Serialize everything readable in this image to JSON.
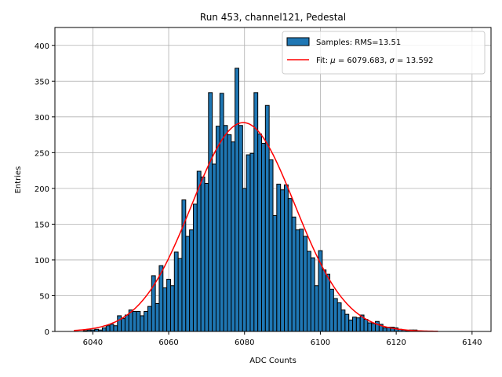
{
  "chart_data": {
    "type": "bar",
    "title": "Run 453, channel121, Pedestal",
    "xlabel": "ADC Counts",
    "ylabel": "Entries",
    "xlim": [
      6030,
      6145
    ],
    "ylim": [
      0,
      425
    ],
    "xticks": [
      6040,
      6060,
      6080,
      6100,
      6120,
      6140
    ],
    "yticks": [
      0,
      50,
      100,
      150,
      200,
      250,
      300,
      350,
      400
    ],
    "grid": true,
    "legend_position": "top-right",
    "bin_width": 1,
    "series": [
      {
        "name": "Samples: RMS=13.51",
        "kind": "histogram",
        "color": "#1f77b4",
        "edge_color": "#000000",
        "x": [
          6038,
          6039,
          6040,
          6041,
          6042,
          6043,
          6044,
          6045,
          6046,
          6047,
          6048,
          6049,
          6050,
          6051,
          6052,
          6053,
          6054,
          6055,
          6056,
          6057,
          6058,
          6059,
          6060,
          6061,
          6062,
          6063,
          6064,
          6065,
          6066,
          6067,
          6068,
          6069,
          6070,
          6071,
          6072,
          6073,
          6074,
          6075,
          6076,
          6077,
          6078,
          6079,
          6080,
          6081,
          6082,
          6083,
          6084,
          6085,
          6086,
          6087,
          6088,
          6089,
          6090,
          6091,
          6092,
          6093,
          6094,
          6095,
          6096,
          6097,
          6098,
          6099,
          6100,
          6101,
          6102,
          6103,
          6104,
          6105,
          6106,
          6107,
          6108,
          6109,
          6110,
          6111,
          6112,
          6113,
          6114,
          6115,
          6116,
          6117,
          6118,
          6119,
          6120,
          6121,
          6122,
          6123,
          6124,
          6125,
          6126
        ],
        "values": [
          1,
          2,
          2,
          3,
          2,
          5,
          8,
          10,
          8,
          22,
          18,
          23,
          30,
          28,
          28,
          22,
          28,
          35,
          78,
          39,
          92,
          61,
          73,
          64,
          111,
          102,
          184,
          133,
          142,
          178,
          224,
          216,
          207,
          334,
          234,
          287,
          333,
          288,
          275,
          265,
          368,
          288,
          200,
          247,
          249,
          334,
          276,
          263,
          316,
          240,
          162,
          206,
          198,
          205,
          186,
          160,
          142,
          143,
          133,
          112,
          103,
          64,
          113,
          86,
          80,
          59,
          46,
          40,
          30,
          24,
          16,
          20,
          19,
          23,
          17,
          12,
          11,
          14,
          10,
          5,
          6,
          6,
          5,
          3,
          2,
          1,
          2,
          2,
          1
        ]
      },
      {
        "name": "Fit: μ = 6079.683, σ = 13.592",
        "kind": "gaussian",
        "color": "#ff0000",
        "mu": 6079.683,
        "sigma": 13.592,
        "amplitude": 292,
        "x_range": [
          6035,
          6131
        ]
      }
    ]
  },
  "legend": {
    "entry_hist": "Samples: RMS=13.51",
    "entry_fit_prefix": "Fit: ",
    "entry_fit_mu_symbol": "μ",
    "entry_fit_mu_value": " = 6079.683, ",
    "entry_fit_sigma_symbol": "σ",
    "entry_fit_sigma_value": " = 13.592"
  }
}
